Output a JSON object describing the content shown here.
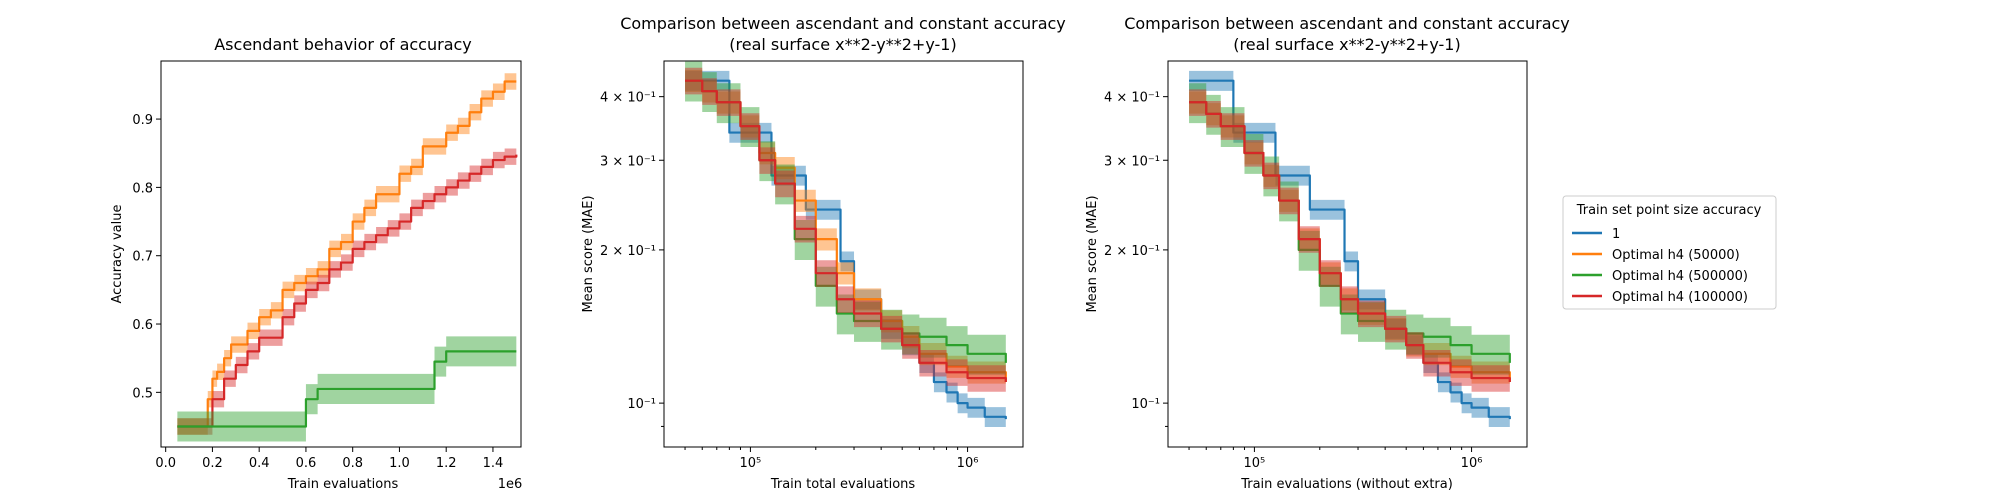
{
  "chart_data": [
    {
      "type": "line",
      "title": "Ascendant behavior of accuracy",
      "xlabel": "Train evaluations",
      "ylabel": "Accuracy value",
      "x_offset_label": "1e6",
      "xlim": [
        -0.02,
        1.52
      ],
      "ylim": [
        0.42,
        0.985
      ],
      "xscale": "linear",
      "yscale": "linear",
      "x_ticks": [
        0.0,
        0.2,
        0.4,
        0.6,
        0.8,
        1.0,
        1.2,
        1.4
      ],
      "x_tick_labels": [
        "0.0",
        "0.2",
        "0.4",
        "0.6",
        "0.8",
        "1.0",
        "1.2",
        "1.4"
      ],
      "y_ticks": [
        0.5,
        0.6,
        0.7,
        0.8,
        0.9
      ],
      "y_tick_labels": [
        "0.5",
        "0.6",
        "0.7",
        "0.8",
        "0.9"
      ],
      "grid": false,
      "series": [
        {
          "color": "#ff7f0e",
          "band": 0.012,
          "band_color": "#ff7f0e",
          "x": [
            0.05,
            0.15,
            0.18,
            0.2,
            0.22,
            0.25,
            0.28,
            0.3,
            0.35,
            0.4,
            0.45,
            0.5,
            0.55,
            0.6,
            0.65,
            0.7,
            0.75,
            0.8,
            0.85,
            0.9,
            0.95,
            1.0,
            1.05,
            1.1,
            1.15,
            1.2,
            1.25,
            1.3,
            1.35,
            1.4,
            1.45,
            1.5
          ],
          "y": [
            0.45,
            0.45,
            0.49,
            0.52,
            0.53,
            0.55,
            0.57,
            0.57,
            0.59,
            0.61,
            0.62,
            0.65,
            0.66,
            0.67,
            0.68,
            0.71,
            0.72,
            0.75,
            0.77,
            0.79,
            0.79,
            0.82,
            0.83,
            0.86,
            0.86,
            0.88,
            0.89,
            0.91,
            0.93,
            0.94,
            0.955,
            0.955
          ]
        },
        {
          "color": "#d62728",
          "band": 0.012,
          "band_color": "#d62728",
          "x": [
            0.05,
            0.15,
            0.2,
            0.25,
            0.3,
            0.35,
            0.4,
            0.45,
            0.5,
            0.55,
            0.6,
            0.65,
            0.7,
            0.75,
            0.8,
            0.85,
            0.9,
            0.95,
            1.0,
            1.05,
            1.1,
            1.15,
            1.2,
            1.25,
            1.3,
            1.35,
            1.4,
            1.45,
            1.5
          ],
          "y": [
            0.45,
            0.45,
            0.49,
            0.52,
            0.54,
            0.56,
            0.58,
            0.58,
            0.61,
            0.63,
            0.65,
            0.66,
            0.68,
            0.69,
            0.71,
            0.72,
            0.73,
            0.74,
            0.75,
            0.77,
            0.78,
            0.79,
            0.8,
            0.81,
            0.82,
            0.83,
            0.84,
            0.845,
            0.848
          ]
        },
        {
          "color": "#2ca02c",
          "band": 0.022,
          "band_color": "#2ca02c",
          "x": [
            0.05,
            0.55,
            0.6,
            0.65,
            0.7,
            0.8,
            0.9,
            1.0,
            1.1,
            1.15,
            1.2,
            1.3,
            1.4,
            1.5
          ],
          "y": [
            0.45,
            0.45,
            0.49,
            0.505,
            0.505,
            0.505,
            0.505,
            0.505,
            0.505,
            0.545,
            0.56,
            0.56,
            0.56,
            0.56
          ]
        }
      ]
    },
    {
      "type": "line",
      "title": "Comparison between ascendant and constant accuracy",
      "subtitle": "(real surface x**2-y**2+y-1)",
      "xlabel": "Train total evaluations",
      "ylabel": "Mean score (MAE)",
      "xlim": [
        40000,
        1800000
      ],
      "ylim": [
        0.082,
        0.47
      ],
      "xscale": "log",
      "yscale": "log",
      "x_ticks": [
        100000,
        1000000
      ],
      "x_tick_labels": [
        "10⁵",
        "10⁶"
      ],
      "y_ticks": [
        0.1,
        0.2,
        0.3,
        0.4
      ],
      "y_tick_labels": [
        "10⁻¹",
        "2 × 10⁻¹",
        "3 × 10⁻¹",
        "4 × 10⁻¹"
      ],
      "grid": false,
      "series": [
        {
          "color": "#1f77b4",
          "band": 0.045,
          "x": [
            50000,
            70000,
            80000,
            110000,
            125000,
            160000,
            180000,
            220000,
            260000,
            300000,
            400000,
            500000,
            600000,
            700000,
            800000,
            900000,
            1000000,
            1200000,
            1500000
          ],
          "y": [
            0.43,
            0.43,
            0.34,
            0.34,
            0.28,
            0.28,
            0.24,
            0.24,
            0.19,
            0.16,
            0.14,
            0.13,
            0.12,
            0.11,
            0.105,
            0.1,
            0.098,
            0.094,
            0.093
          ]
        },
        {
          "color": "#ff7f0e",
          "band": 0.05,
          "x": [
            50000,
            60000,
            70000,
            90000,
            110000,
            130000,
            160000,
            200000,
            250000,
            300000,
            400000,
            500000,
            600000,
            800000,
            1000000,
            1500000
          ],
          "y": [
            0.43,
            0.41,
            0.39,
            0.35,
            0.31,
            0.29,
            0.25,
            0.21,
            0.18,
            0.16,
            0.145,
            0.135,
            0.125,
            0.118,
            0.115,
            0.11
          ]
        },
        {
          "color": "#2ca02c",
          "band": 0.09,
          "x": [
            50000,
            60000,
            70000,
            90000,
            110000,
            130000,
            160000,
            200000,
            250000,
            300000,
            400000,
            500000,
            600000,
            800000,
            1000000,
            1500000
          ],
          "y": [
            0.43,
            0.41,
            0.39,
            0.35,
            0.3,
            0.27,
            0.21,
            0.17,
            0.15,
            0.145,
            0.14,
            0.137,
            0.135,
            0.13,
            0.125,
            0.12
          ]
        },
        {
          "color": "#d62728",
          "band": 0.06,
          "x": [
            50000,
            60000,
            70000,
            90000,
            110000,
            130000,
            160000,
            200000,
            250000,
            300000,
            400000,
            500000,
            600000,
            800000,
            1000000,
            1500000
          ],
          "y": [
            0.43,
            0.41,
            0.39,
            0.35,
            0.3,
            0.27,
            0.22,
            0.18,
            0.16,
            0.15,
            0.14,
            0.13,
            0.12,
            0.115,
            0.112,
            0.11
          ]
        }
      ]
    },
    {
      "type": "line",
      "title": "Comparison between ascendant and constant accuracy",
      "subtitle": "(real surface x**2-y**2+y-1)",
      "xlabel": "Train evaluations (without extra)",
      "ylabel": "Mean score (MAE)",
      "xlim": [
        40000,
        1800000
      ],
      "ylim": [
        0.082,
        0.47
      ],
      "xscale": "log",
      "yscale": "log",
      "x_ticks": [
        100000,
        1000000
      ],
      "x_tick_labels": [
        "10⁵",
        "10⁶"
      ],
      "y_ticks": [
        0.1,
        0.2,
        0.3,
        0.4
      ],
      "y_tick_labels": [
        "10⁻¹",
        "2 × 10⁻¹",
        "3 × 10⁻¹",
        "4 × 10⁻¹"
      ],
      "grid": false,
      "legend_title": "Train set point size accuracy",
      "legend_entries": [
        "1",
        "Optimal h4 (50000)",
        "Optimal h4 (500000)",
        "Optimal h4 (100000)"
      ],
      "legend_colors": [
        "#1f77b4",
        "#ff7f0e",
        "#2ca02c",
        "#d62728"
      ],
      "legend_placement": "outside-right",
      "series": [
        {
          "color": "#1f77b4",
          "band": 0.045,
          "x": [
            50000,
            70000,
            80000,
            110000,
            125000,
            160000,
            180000,
            220000,
            260000,
            300000,
            400000,
            500000,
            600000,
            700000,
            800000,
            900000,
            1000000,
            1200000,
            1500000
          ],
          "y": [
            0.43,
            0.43,
            0.34,
            0.34,
            0.28,
            0.28,
            0.24,
            0.24,
            0.19,
            0.16,
            0.14,
            0.13,
            0.12,
            0.11,
            0.105,
            0.1,
            0.098,
            0.094,
            0.093
          ]
        },
        {
          "color": "#ff7f0e",
          "band": 0.05,
          "x": [
            50000,
            60000,
            70000,
            90000,
            110000,
            130000,
            160000,
            200000,
            250000,
            300000,
            400000,
            500000,
            600000,
            800000,
            1000000,
            1500000
          ],
          "y": [
            0.39,
            0.37,
            0.35,
            0.31,
            0.28,
            0.25,
            0.21,
            0.18,
            0.16,
            0.15,
            0.14,
            0.13,
            0.125,
            0.118,
            0.115,
            0.11
          ]
        },
        {
          "color": "#2ca02c",
          "band": 0.09,
          "x": [
            50000,
            60000,
            70000,
            90000,
            110000,
            130000,
            160000,
            200000,
            250000,
            300000,
            400000,
            500000,
            600000,
            800000,
            1000000,
            1500000
          ],
          "y": [
            0.39,
            0.37,
            0.35,
            0.31,
            0.28,
            0.25,
            0.2,
            0.17,
            0.15,
            0.145,
            0.14,
            0.137,
            0.135,
            0.13,
            0.125,
            0.12
          ]
        },
        {
          "color": "#d62728",
          "band": 0.06,
          "x": [
            50000,
            60000,
            70000,
            90000,
            110000,
            130000,
            160000,
            200000,
            250000,
            300000,
            400000,
            500000,
            600000,
            800000,
            1000000,
            1500000
          ],
          "y": [
            0.39,
            0.37,
            0.35,
            0.31,
            0.28,
            0.25,
            0.21,
            0.18,
            0.16,
            0.15,
            0.14,
            0.13,
            0.12,
            0.115,
            0.112,
            0.11
          ]
        }
      ]
    }
  ]
}
